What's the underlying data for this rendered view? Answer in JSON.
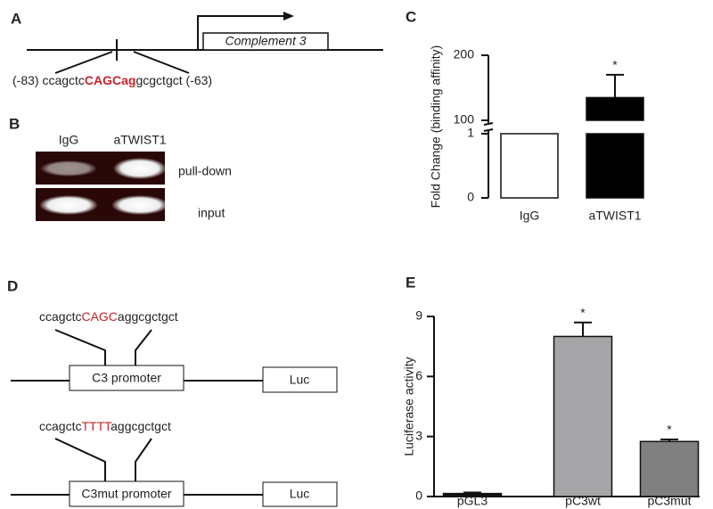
{
  "panel_labels": [
    "A",
    "B",
    "C",
    "D",
    "E"
  ],
  "panel_a": {
    "seq_left": "(-83) ccagctc",
    "seq_highlight": "CAGCag",
    "seq_right": "gcgctgct (-63)",
    "gene": "Complement 3"
  },
  "panel_b": {
    "lanes": [
      "IgG",
      "aTWIST1"
    ],
    "rows": [
      "pull-down",
      "input"
    ]
  },
  "panel_d": {
    "constructs": [
      {
        "seq_pre": "ccagctc",
        "seq_site": "CAGC",
        "seq_post": "aggcgctgct",
        "promoter": "C3 promoter",
        "reporter": "Luc"
      },
      {
        "seq_pre": "ccagctc",
        "seq_site": "TTTT",
        "seq_post": "aggcgctgct",
        "promoter": "C3mut promoter",
        "reporter": "Luc"
      }
    ]
  },
  "chart_data": [
    {
      "type": "bar",
      "ylabel": "Fold Change (binding affinity)",
      "categories": [
        "IgG",
        "aTWIST1"
      ],
      "values": [
        1,
        135
      ],
      "errors": [
        null,
        35
      ],
      "colors": [
        "#ffffff",
        "#000000"
      ],
      "annotations": [
        null,
        "*"
      ],
      "ylim": [
        0,
        200
      ],
      "ybreak": [
        1,
        100
      ],
      "yticks": [
        0,
        1,
        100,
        200
      ]
    },
    {
      "type": "bar",
      "ylabel": "Luciferase activity",
      "categories": [
        "pGL3",
        "pC3wt",
        "pC3mut"
      ],
      "values": [
        0.15,
        8.0,
        2.75
      ],
      "errors": [
        0.05,
        0.7,
        0.1
      ],
      "colors": [
        "#111111",
        "#a6a6a8",
        "#808080"
      ],
      "annotations": [
        null,
        "*",
        "*"
      ],
      "ylim": [
        0,
        9
      ],
      "yticks": [
        0,
        3,
        6,
        9
      ]
    }
  ]
}
